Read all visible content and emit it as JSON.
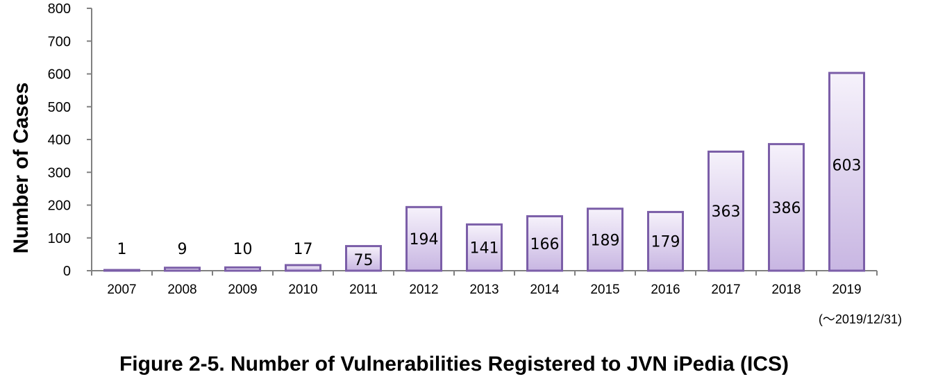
{
  "caption": "Figure 2-5. Number of Vulnerabilities Registered to JVN iPedia (ICS)",
  "chart_data": {
    "type": "bar",
    "categories": [
      "2007",
      "2008",
      "2009",
      "2010",
      "2011",
      "2012",
      "2013",
      "2014",
      "2015",
      "2016",
      "2017",
      "2018",
      "2019"
    ],
    "values": [
      1,
      9,
      10,
      17,
      75,
      194,
      141,
      166,
      189,
      179,
      363,
      386,
      603
    ],
    "ylabel": "Number of Cases",
    "ylim": [
      0,
      800
    ],
    "yticks": [
      0,
      100,
      200,
      300,
      400,
      500,
      600,
      700,
      800
    ],
    "note": "(～2019/12/31)",
    "grid": false,
    "colors": {
      "bar_stroke": "#7b5ea8",
      "bar_fill_top": "#f6f2fb",
      "bar_fill_bottom": "#c8b6e2",
      "axis": "#808080"
    }
  }
}
